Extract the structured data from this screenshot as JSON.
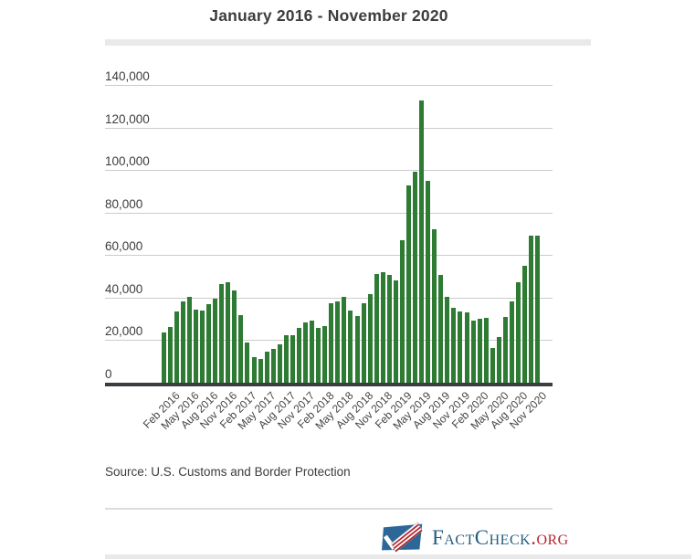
{
  "page": {
    "title": "January 2016 - November 2020",
    "source_note": "Source: U.S. Customs and Border Protection",
    "logo": {
      "name": "FactCheck.org",
      "text_main": "FactCheck",
      "text_suffix": ".org",
      "icon": "flag-checkmark-icon"
    }
  },
  "colors": {
    "bar_green": "#2e7b33",
    "gridline": "#cbcbcb",
    "axis_baseline": "#3b3e41",
    "title_band": "#e9e9e9",
    "logo_flag_blue": "#2d6797",
    "logo_navy": "#235d7f",
    "logo_red": "#b3282e"
  },
  "chart_data": {
    "type": "bar",
    "title": "January 2016 - November 2020",
    "xlabel": "",
    "ylabel": "",
    "ylim": [
      0,
      140000
    ],
    "grid": true,
    "legend": "none",
    "bar_color": "#2e7b33",
    "yticks": [
      {
        "value": 140000,
        "label": "140,000"
      },
      {
        "value": 120000,
        "label": "120,000"
      },
      {
        "value": 100000,
        "label": "100,000"
      },
      {
        "value": 80000,
        "label": "80,000"
      },
      {
        "value": 60000,
        "label": "60,000"
      },
      {
        "value": 40000,
        "label": "40,000"
      },
      {
        "value": 20000,
        "label": "20,000"
      },
      {
        "value": 0,
        "label": "0"
      }
    ],
    "categories": [
      "Jan 2016",
      "Feb 2016",
      "Mar 2016",
      "Apr 2016",
      "May 2016",
      "Jun 2016",
      "Jul 2016",
      "Aug 2016",
      "Sep 2016",
      "Oct 2016",
      "Nov 2016",
      "Dec 2016",
      "Jan 2017",
      "Feb 2017",
      "Mar 2017",
      "Apr 2017",
      "May 2017",
      "Jun 2017",
      "Jul 2017",
      "Aug 2017",
      "Sep 2017",
      "Oct 2017",
      "Nov 2017",
      "Dec 2017",
      "Jan 2018",
      "Feb 2018",
      "Mar 2018",
      "Apr 2018",
      "May 2018",
      "Jun 2018",
      "Jul 2018",
      "Aug 2018",
      "Sep 2018",
      "Oct 2018",
      "Nov 2018",
      "Dec 2018",
      "Jan 2019",
      "Feb 2019",
      "Mar 2019",
      "Apr 2019",
      "May 2019",
      "Jun 2019",
      "Jul 2019",
      "Aug 2019",
      "Sep 2019",
      "Oct 2019",
      "Nov 2019",
      "Dec 2019",
      "Jan 2020",
      "Feb 2020",
      "Mar 2020",
      "Apr 2020",
      "May 2020",
      "Jun 2020",
      "Jul 2020",
      "Aug 2020",
      "Sep 2020",
      "Oct 2020",
      "Nov 2020"
    ],
    "values": [
      23758,
      26069,
      33335,
      38089,
      40337,
      34450,
      33724,
      37048,
      39501,
      46195,
      47214,
      43251,
      31575,
      18754,
      12193,
      11127,
      14519,
      16087,
      18187,
      22293,
      22537,
      25976,
      28207,
      28998,
      25975,
      26666,
      37385,
      38234,
      40344,
      34114,
      31299,
      37544,
      41486,
      51001,
      51857,
      50749,
      47979,
      66884,
      92831,
      99273,
      132856,
      94902,
      71978,
      50684,
      40507,
      35402,
      33510,
      32858,
      29205,
      30068,
      30389,
      16182,
      21475,
      30892,
      38347,
      47283,
      54771,
      69032,
      69022
    ],
    "xticks_shown": [
      "Feb 2016",
      "May 2016",
      "Aug 2016",
      "Nov 2016",
      "Feb 2017",
      "May 2017",
      "Aug 2017",
      "Nov 2017",
      "Feb 2018",
      "May 2018",
      "Aug 2018",
      "Nov 2018",
      "Feb 2019",
      "May 2019",
      "Aug 2019",
      "Nov 2019",
      "Feb 2020",
      "May 2020",
      "Aug 2020",
      "Nov 2020"
    ]
  }
}
